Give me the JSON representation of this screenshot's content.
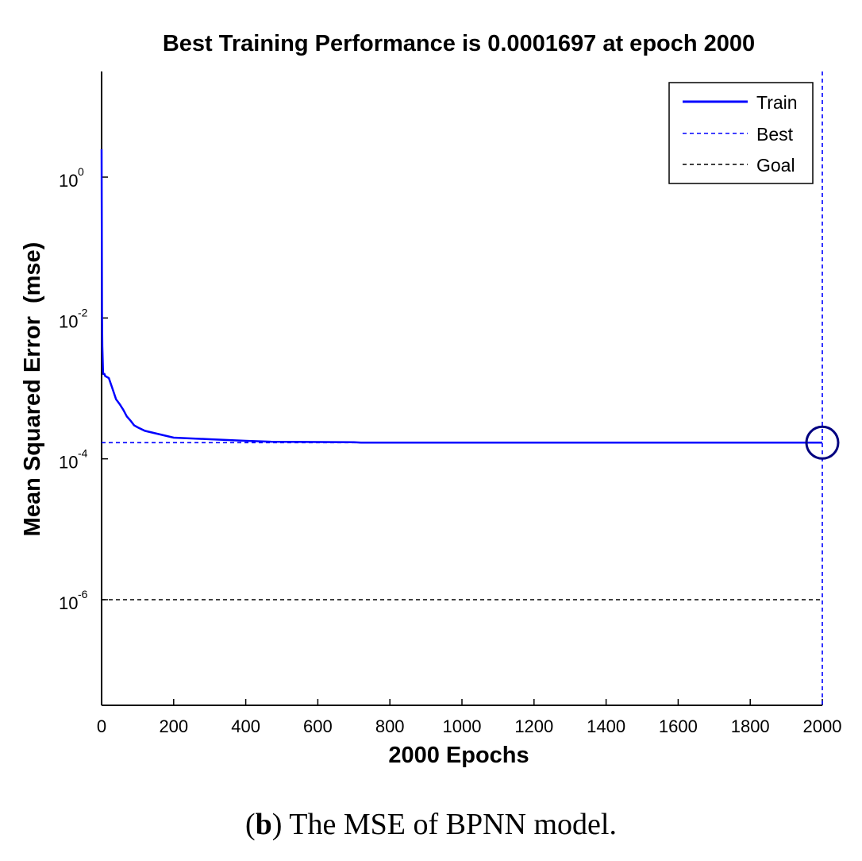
{
  "chart_data": {
    "type": "line",
    "title": "Best Training Performance is 0.0001697 at epoch 2000",
    "xlabel": "2000 Epochs",
    "ylabel": "Mean Squared Error  (mse)",
    "xlim": [
      0,
      2000
    ],
    "ylim_log10": [
      -7.5,
      1.5
    ],
    "yscale": "log",
    "grid": false,
    "legend_position": "top-right",
    "x_ticks": [
      "0",
      "200",
      "400",
      "600",
      "800",
      "1000",
      "1200",
      "1400",
      "1600",
      "1800",
      "2000"
    ],
    "x_tick_values": [
      0,
      200,
      400,
      600,
      800,
      1000,
      1200,
      1400,
      1600,
      1800,
      2000
    ],
    "y_ticks": [
      {
        "base": "10",
        "exp": "0",
        "log10": 0
      },
      {
        "base": "10",
        "exp": "-2",
        "log10": -2
      },
      {
        "base": "10",
        "exp": "-4",
        "log10": -4
      },
      {
        "base": "10",
        "exp": "-6",
        "log10": -6
      }
    ],
    "series": [
      {
        "name": "Train",
        "color": "#0000ff",
        "style": "solid",
        "x": [
          0,
          1,
          2,
          3,
          4,
          5,
          8,
          10,
          20,
          30,
          40,
          50,
          60,
          70,
          80,
          90,
          100,
          120,
          150,
          200,
          300,
          400,
          470,
          700,
          720,
          1000,
          2000
        ],
        "y": [
          2.5,
          0.012,
          0.004,
          0.0025,
          0.0017,
          0.0016,
          0.0016,
          0.0015,
          0.0014,
          0.001,
          0.0007,
          0.0006,
          0.0005,
          0.0004,
          0.00035,
          0.0003,
          0.00028,
          0.00025,
          0.00023,
          0.0002,
          0.00019,
          0.00018,
          0.000175,
          0.000172,
          0.00017,
          0.00017,
          0.0001697
        ]
      },
      {
        "name": "Best",
        "color": "#0000ff",
        "style": "dashed",
        "best_epoch": 2000,
        "best_value": 0.0001697
      },
      {
        "name": "Goal",
        "color": "#000000",
        "style": "dashed",
        "value": 1e-06
      }
    ]
  },
  "caption": {
    "label": "b",
    "text": " The MSE of BPNN model."
  }
}
